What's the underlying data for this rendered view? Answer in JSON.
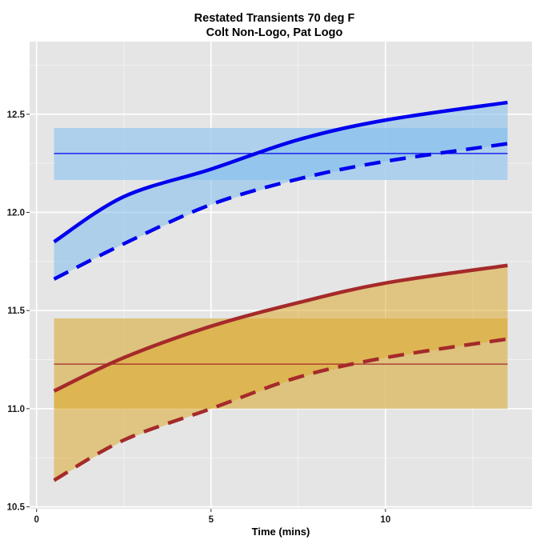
{
  "chart_data": {
    "type": "line",
    "title": "Restated Transients 70 deg F",
    "subtitle": "Colt Non-Logo, Pat Logo",
    "xlabel": "Time (mins)",
    "ylabel": "",
    "xlim": [
      -0.2,
      14.2
    ],
    "ylim": [
      10.49,
      12.87
    ],
    "x_ticks": [
      0,
      5,
      10
    ],
    "x_tick_labels": [
      "0",
      "5",
      "10"
    ],
    "y_ticks": [
      10.5,
      11.0,
      11.5,
      12.0,
      12.5
    ],
    "y_tick_labels": [
      "10.5",
      "11.0",
      "11.5",
      "12.0",
      "12.5"
    ],
    "grid": true,
    "background": "#e5e5e5",
    "x": [
      0.5,
      2.5,
      5,
      7.5,
      10,
      13.5
    ],
    "groups": [
      {
        "name": "Colt Non-Logo",
        "line_color": "#0000ee",
        "band_color": "#a4cdef",
        "ribbon_color": "#7fbdec",
        "band": {
          "x_start": 0.5,
          "x_end": 13.5,
          "y_low": 12.165,
          "y_high": 12.43
        },
        "reference_line": 12.3,
        "series": [
          {
            "name": "Colt Non-Logo upper",
            "style": "solid",
            "values": [
              11.85,
              12.08,
              12.22,
              12.37,
              12.47,
              12.56
            ]
          },
          {
            "name": "Colt Non-Logo lower",
            "style": "dashed",
            "values": [
              11.66,
              11.84,
              12.04,
              12.17,
              12.26,
              12.35
            ]
          }
        ]
      },
      {
        "name": "Pat Logo",
        "line_color": "#a52a2a",
        "band_color": "#dcbd6c",
        "ribbon_color": "#dcaa30",
        "band": {
          "x_start": 0.5,
          "x_end": 13.5,
          "y_low": 11.0,
          "y_high": 11.46
        },
        "reference_line": 11.227,
        "series": [
          {
            "name": "Pat Logo upper",
            "style": "solid",
            "values": [
              11.09,
              11.26,
              11.42,
              11.54,
              11.64,
              11.73
            ]
          },
          {
            "name": "Pat Logo lower",
            "style": "dashed",
            "values": [
              10.635,
              10.84,
              11.0,
              11.16,
              11.26,
              11.355
            ]
          }
        ]
      }
    ]
  }
}
